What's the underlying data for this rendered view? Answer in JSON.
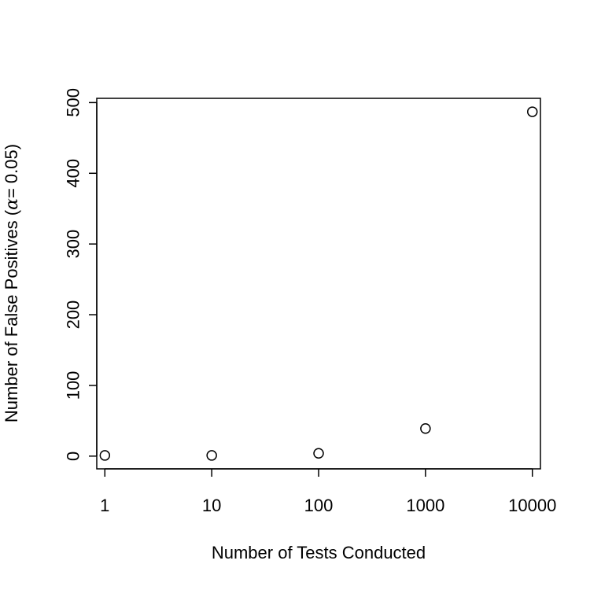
{
  "chart_data": {
    "type": "scatter",
    "title": "",
    "xlabel": "Number of Tests Conducted",
    "ylabel_parts": {
      "before": "Number of False Positives (",
      "symbol": "α",
      "after": "= 0.05)"
    },
    "x_scale": "log",
    "x": [
      1,
      10,
      100,
      1000,
      10000
    ],
    "y": [
      1,
      1,
      4,
      39,
      487
    ],
    "x_ticks": [
      1,
      10,
      100,
      1000,
      10000
    ],
    "x_tick_labels": [
      "1",
      "10",
      "100",
      "1000",
      "10000"
    ],
    "y_ticks": [
      0,
      100,
      200,
      300,
      400,
      500
    ],
    "y_tick_labels": [
      "0",
      "100",
      "200",
      "300",
      "400",
      "500"
    ],
    "xlim": [
      0.84,
      11900
    ],
    "ylim": [
      -18,
      506
    ],
    "grid": false,
    "legend": "none",
    "point_style": "open-circle",
    "color": "#000000"
  }
}
